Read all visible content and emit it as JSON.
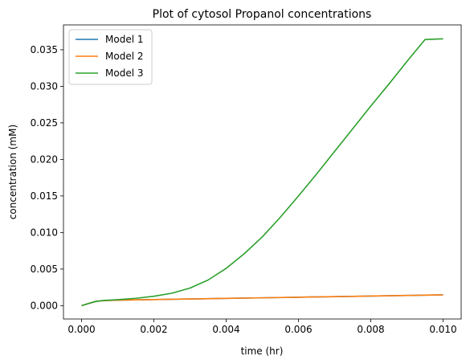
{
  "chart_data": {
    "type": "line",
    "title": "Plot of cytosol Propanol concentrations",
    "xlabel": "time (hr)",
    "ylabel": "concentration (mM)",
    "xlim": [
      -0.0005,
      0.0105
    ],
    "ylim": [
      -0.00183,
      0.0384
    ],
    "x_ticks": [
      0.0,
      0.002,
      0.004,
      0.006,
      0.008,
      0.01
    ],
    "x_tick_labels": [
      "0.000",
      "0.002",
      "0.004",
      "0.006",
      "0.008",
      "0.010"
    ],
    "y_ticks": [
      0.0,
      0.005,
      0.01,
      0.015,
      0.02,
      0.025,
      0.03,
      0.035
    ],
    "y_tick_labels": [
      "0.000",
      "0.005",
      "0.010",
      "0.015",
      "0.020",
      "0.025",
      "0.030",
      "0.035"
    ],
    "grid": false,
    "legend_position": "top-left",
    "series": [
      {
        "name": "Model 1",
        "color": "#1f77b4",
        "x": [
          0.0,
          0.0002,
          0.0004,
          0.0006,
          0.0008,
          0.001,
          0.002,
          0.003,
          0.004,
          0.005,
          0.006,
          0.007,
          0.008,
          0.009,
          0.01
        ],
        "y": [
          0.0,
          0.0003,
          0.00058,
          0.00068,
          0.00072,
          0.00075,
          0.00083,
          0.00091,
          0.00099,
          0.00107,
          0.00115,
          0.00123,
          0.00131,
          0.00139,
          0.00148
        ]
      },
      {
        "name": "Model 2",
        "color": "#ff7f0e",
        "x": [
          0.0,
          0.0002,
          0.0004,
          0.0006,
          0.0008,
          0.001,
          0.002,
          0.003,
          0.004,
          0.005,
          0.006,
          0.007,
          0.008,
          0.009,
          0.01
        ],
        "y": [
          0.0,
          0.0003,
          0.00058,
          0.00068,
          0.00072,
          0.00075,
          0.00083,
          0.00091,
          0.00099,
          0.00107,
          0.00115,
          0.00123,
          0.00131,
          0.00139,
          0.00148
        ]
      },
      {
        "name": "Model 3",
        "color": "#2ca02c",
        "x": [
          0.0,
          0.0002,
          0.0004,
          0.0006,
          0.0008,
          0.001,
          0.0015,
          0.002,
          0.0025,
          0.003,
          0.0035,
          0.004,
          0.0045,
          0.005,
          0.0055,
          0.006,
          0.0065,
          0.007,
          0.0075,
          0.008,
          0.0085,
          0.009,
          0.0095,
          0.01
        ],
        "y": [
          0.0,
          0.0003,
          0.00058,
          0.0007,
          0.00076,
          0.00082,
          0.001,
          0.00128,
          0.0017,
          0.0024,
          0.0035,
          0.0051,
          0.0071,
          0.0094,
          0.0121,
          0.015,
          0.018,
          0.0211,
          0.0242,
          0.0273,
          0.0303,
          0.0334,
          0.0364,
          0.0365
        ]
      }
    ]
  }
}
